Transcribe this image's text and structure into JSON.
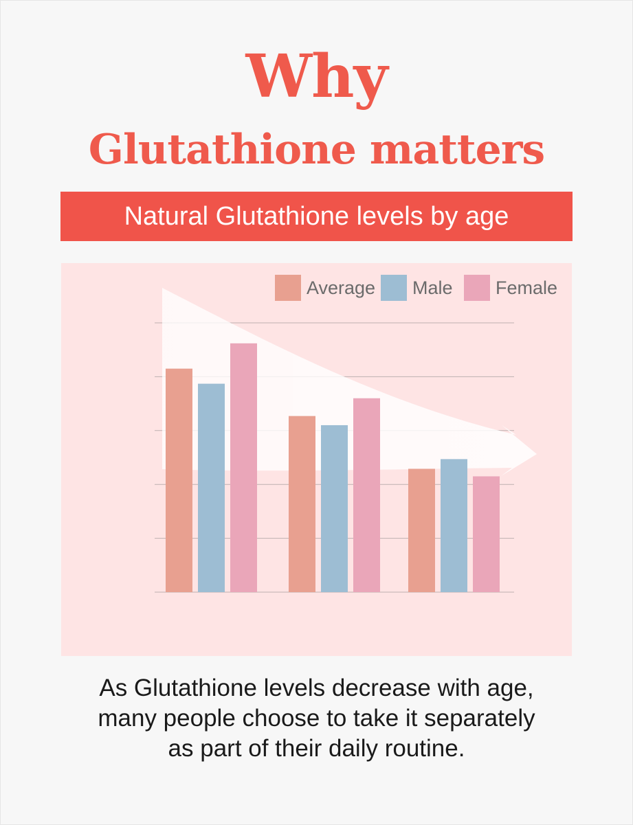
{
  "header": {
    "line1": "Why",
    "line2": "Glutathione matters"
  },
  "banner": {
    "text": "Natural Glutathione levels by age"
  },
  "caption": {
    "lines": [
      "As Glutathione levels decrease with age,",
      "many people choose to take it separately",
      "as part of their daily routine."
    ]
  },
  "colors": {
    "accent": "#ef5a4c",
    "banner": "#f0544a",
    "panel": "#fee4e4",
    "average": "#e8a090",
    "male": "#9dbdd3",
    "female": "#eaa6b9"
  },
  "chart_data": {
    "type": "bar",
    "title": "",
    "xlabel": "",
    "ylabel": "",
    "categories": [
      "",
      "",
      ""
    ],
    "series": [
      {
        "name": "Average",
        "color": "#e8a090",
        "values": [
          4.15,
          3.27,
          2.29
        ]
      },
      {
        "name": "Male",
        "color": "#9dbdd3",
        "values": [
          3.87,
          3.1,
          2.47
        ]
      },
      {
        "name": "Female",
        "color": "#eaa6b9",
        "values": [
          4.62,
          3.6,
          2.15
        ]
      }
    ],
    "ylim": [
      0,
      5
    ],
    "gridlines": 5,
    "legend": "top-right",
    "trend_arrow": "decreasing"
  }
}
